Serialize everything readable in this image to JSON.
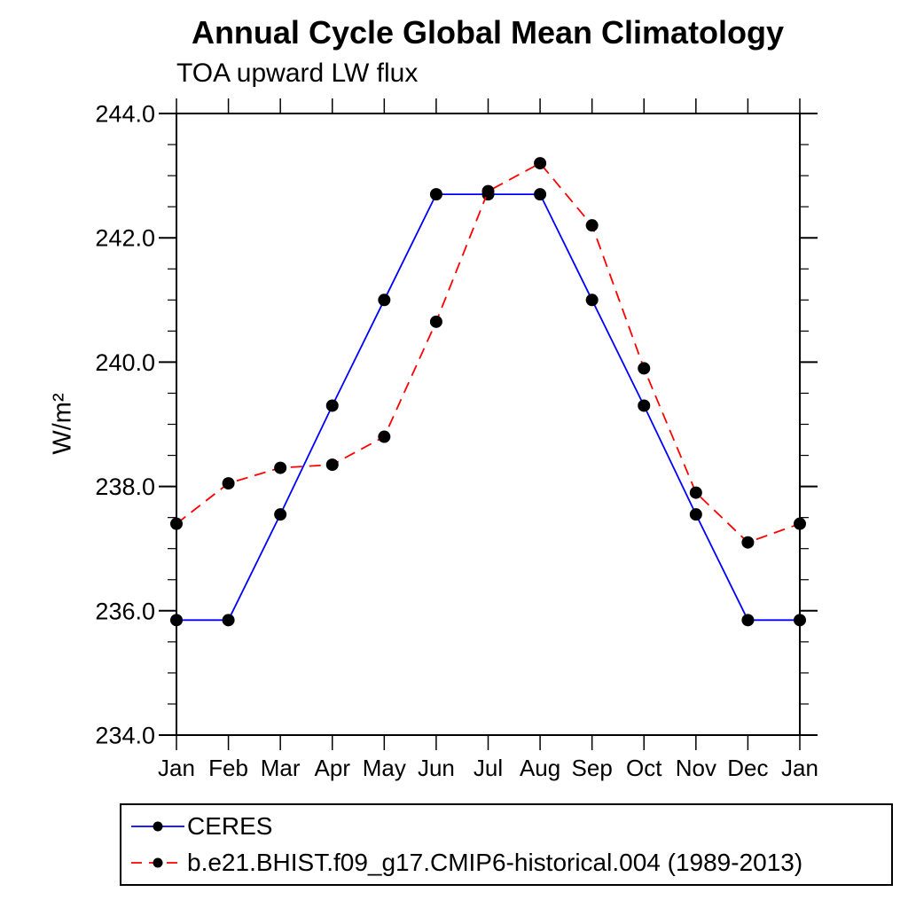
{
  "chart_data": {
    "type": "line",
    "title": "Annual Cycle Global Mean Climatology",
    "subtitle": "TOA upward LW flux",
    "xlabel": "",
    "ylabel": "W/m²",
    "categories": [
      "Jan",
      "Feb",
      "Mar",
      "Apr",
      "May",
      "Jun",
      "Jul",
      "Aug",
      "Sep",
      "Oct",
      "Nov",
      "Dec",
      "Jan"
    ],
    "ylim": [
      234.0,
      244.0
    ],
    "ytick_values": [
      234,
      236,
      238,
      240,
      242,
      244
    ],
    "ytick_labels": [
      "234.0",
      "236.0",
      "238.0",
      "240.0",
      "242.0",
      "244.0"
    ],
    "y_minor_step": 0.5,
    "grid": false,
    "legend_position": "bottom-left",
    "axis_color": "#000000",
    "series": [
      {
        "name": "CERES",
        "color": "#0000ff",
        "style": "solid",
        "marker": "filled-circle",
        "marker_color": "#000000",
        "values": [
          235.85,
          235.85,
          237.55,
          239.3,
          241.0,
          242.7,
          242.7,
          242.7,
          241.0,
          239.3,
          237.55,
          235.85,
          235.85
        ]
      },
      {
        "name": "b.e21.BHIST.f09_g17.CMIP6-historical.004 (1989-2013)",
        "color": "#ff0000",
        "style": "dashed",
        "marker": "filled-circle",
        "marker_color": "#000000",
        "values": [
          237.4,
          238.05,
          238.3,
          238.35,
          238.8,
          240.65,
          242.75,
          243.2,
          242.2,
          239.9,
          237.9,
          237.1,
          237.4
        ]
      }
    ]
  }
}
